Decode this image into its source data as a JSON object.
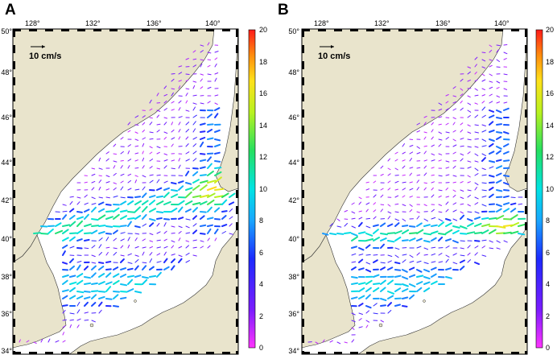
{
  "panels": [
    {
      "id": "A",
      "label": "A",
      "lon_ticks": [
        "128°",
        "132°",
        "136°",
        "140°"
      ],
      "lat_ticks": [
        "50°",
        "48°",
        "46°",
        "44°",
        "42°",
        "40°",
        "38°",
        "36°",
        "34°"
      ],
      "scale_label": "10 cm/s",
      "colorbar_ticks": [
        "20",
        "18",
        "16",
        "14",
        "12",
        "10",
        "8",
        "6",
        "4",
        "2",
        "0"
      ]
    },
    {
      "id": "B",
      "label": "B",
      "lon_ticks": [
        "128°",
        "132°",
        "136°",
        "140°"
      ],
      "lat_ticks": [
        "50°",
        "48°",
        "46°",
        "44°",
        "42°",
        "40°",
        "38°",
        "36°",
        "34°"
      ],
      "scale_label": "10 cm/s",
      "colorbar_ticks": [
        "20",
        "18",
        "16",
        "14",
        "12",
        "10",
        "8",
        "6",
        "4",
        "2",
        "0"
      ]
    }
  ],
  "colors": {
    "land": "#e9e4cc",
    "sea": "#ffffff",
    "coastline": "#333333"
  },
  "colorbar_range": [
    0,
    20
  ]
}
